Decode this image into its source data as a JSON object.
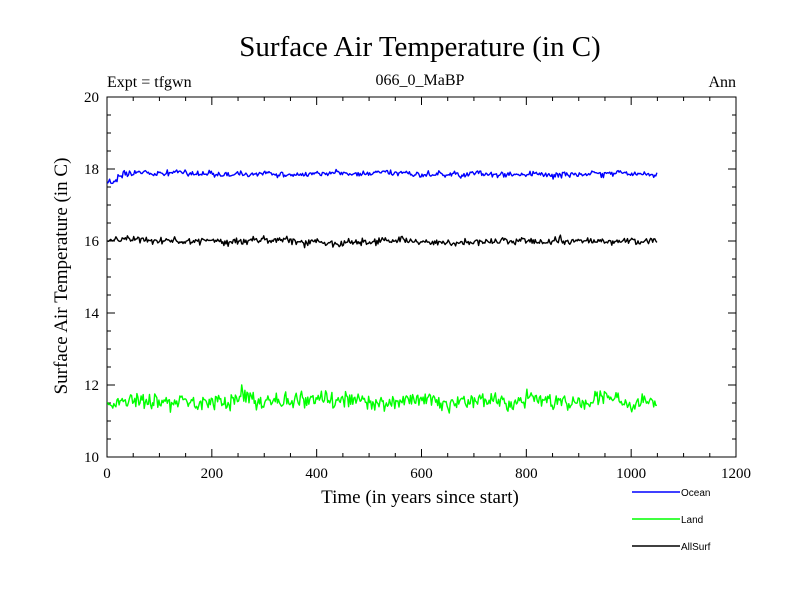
{
  "chart_data": {
    "type": "line",
    "title": "Surface Air Temperature (in C)",
    "left_label": "Expt = tfgwn",
    "center_label": "066_0_MaBP",
    "right_label": "Ann",
    "xlabel": "Time (in years since start)",
    "ylabel": "Surface Air Temperature (in C)",
    "xlim": [
      0,
      1200
    ],
    "ylim": [
      10,
      20
    ],
    "xticks": [
      "0",
      "200",
      "400",
      "600",
      "800",
      "1000",
      "1200"
    ],
    "yticks": [
      "10",
      "12",
      "14",
      "16",
      "18",
      "20"
    ],
    "x_range_years": [
      1,
      1050
    ],
    "series": [
      {
        "name": "Ocean",
        "color": "#0000ff",
        "mean": 17.85,
        "variability": 0.07,
        "min": 17.6,
        "max": 18.15
      },
      {
        "name": "Land",
        "color": "#00ff00",
        "mean": 11.55,
        "variability": 0.18,
        "min": 10.8,
        "max": 12.15
      },
      {
        "name": "AllSurf",
        "color": "#000000",
        "mean": 16.0,
        "variability": 0.08,
        "min": 15.6,
        "max": 16.45
      }
    ]
  }
}
